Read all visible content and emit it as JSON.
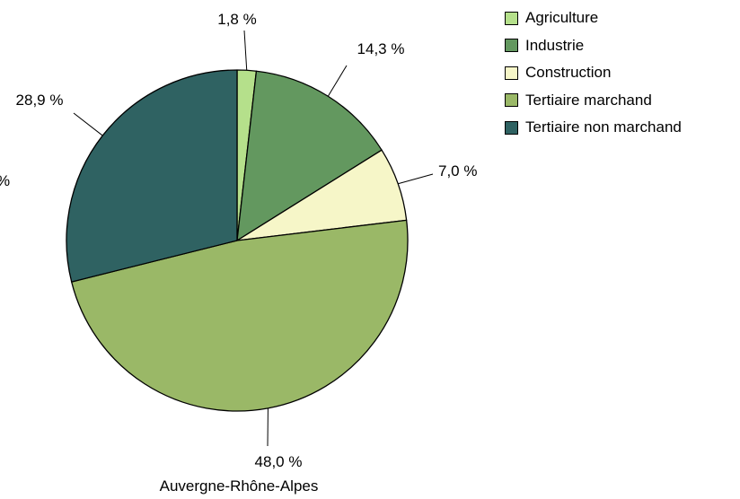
{
  "chart_data": {
    "type": "pie",
    "title": "",
    "xlabel": "Auvergne-Rhône-Alpes",
    "categories": [
      "Agriculture",
      "Industrie",
      "Construction",
      "Tertiaire marchand",
      "Tertiaire non marchand"
    ],
    "values": [
      1.8,
      14.3,
      7.0,
      48.0,
      28.9
    ],
    "value_labels": [
      "1,8 %",
      "14,3 %",
      "7,0 %",
      "48,0 %",
      "28,9 %"
    ],
    "colors": [
      "#b5e08b",
      "#63985f",
      "#f6f6c8",
      "#9ab867",
      "#2f6262"
    ],
    "start_angle_deg": 0,
    "direction": "clockwise",
    "legend_position": "top-right"
  },
  "stray_label": "%"
}
